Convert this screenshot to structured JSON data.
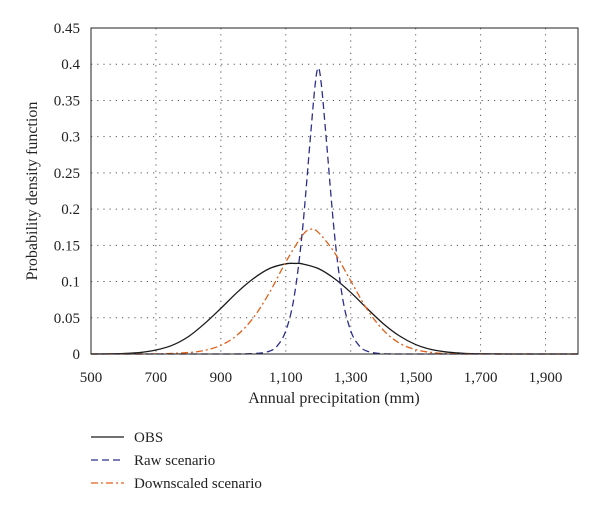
{
  "chart_data": {
    "type": "line",
    "title": "",
    "xlabel": "Annual precipitation (mm)",
    "ylabel": "Probability density function",
    "xlim": [
      500,
      2000
    ],
    "ylim": [
      0,
      0.45
    ],
    "xticks": [
      500,
      700,
      900,
      1100,
      1300,
      1500,
      1700,
      1900
    ],
    "xtick_labels": [
      "500",
      "700",
      "900",
      "1,100",
      "1,300",
      "1,500",
      "1,700",
      "1,900"
    ],
    "yticks": [
      0,
      0.05,
      0.1,
      0.15,
      0.2,
      0.25,
      0.3,
      0.35,
      0.4,
      0.45
    ],
    "ytick_labels": [
      "0",
      "0.05",
      "0.1",
      "0.15",
      "0.2",
      "0.25",
      "0.3",
      "0.35",
      "0.4",
      "0.45"
    ],
    "grid": true,
    "legend_position": "bottom-left",
    "series": [
      {
        "name": "OBS",
        "color": "#1a1a1a",
        "style": "solid",
        "x": [
          500,
          550,
          600,
          650,
          700,
          750,
          800,
          850,
          900,
          950,
          1000,
          1050,
          1100,
          1130,
          1150,
          1200,
          1250,
          1300,
          1350,
          1400,
          1450,
          1500,
          1550,
          1600,
          1650,
          1700,
          1750,
          1800,
          1900,
          2000
        ],
        "y": [
          0.0,
          0.0002,
          0.0007,
          0.002,
          0.0055,
          0.012,
          0.024,
          0.042,
          0.063,
          0.085,
          0.104,
          0.118,
          0.1245,
          0.125,
          0.1245,
          0.118,
          0.104,
          0.085,
          0.063,
          0.042,
          0.025,
          0.013,
          0.006,
          0.0025,
          0.0009,
          0.0003,
          0.0001,
          0.0,
          0.0,
          0.0
        ]
      },
      {
        "name": "Raw scenario",
        "color": "#2e2e8c",
        "style": "dashed",
        "x": [
          500,
          900,
          1000,
          1050,
          1075,
          1100,
          1125,
          1150,
          1175,
          1190,
          1200,
          1210,
          1225,
          1250,
          1275,
          1300,
          1325,
          1350,
          1400,
          1500,
          2000
        ],
        "y": [
          0.0,
          0.0,
          0.0005,
          0.004,
          0.012,
          0.032,
          0.077,
          0.165,
          0.295,
          0.37,
          0.395,
          0.37,
          0.295,
          0.165,
          0.077,
          0.032,
          0.012,
          0.004,
          0.0003,
          0.0,
          0.0
        ]
      },
      {
        "name": "Downscaled scenario",
        "color": "#e0601a",
        "style": "dashdot",
        "x": [
          500,
          700,
          800,
          850,
          900,
          950,
          1000,
          1050,
          1100,
          1150,
          1175,
          1200,
          1250,
          1300,
          1350,
          1400,
          1450,
          1500,
          1550,
          1600,
          1700,
          2000
        ],
        "y": [
          0.0,
          0.0002,
          0.002,
          0.005,
          0.012,
          0.026,
          0.05,
          0.085,
          0.127,
          0.163,
          0.172,
          0.168,
          0.14,
          0.101,
          0.062,
          0.033,
          0.015,
          0.006,
          0.002,
          0.0006,
          0.0,
          0.0
        ]
      }
    ]
  }
}
